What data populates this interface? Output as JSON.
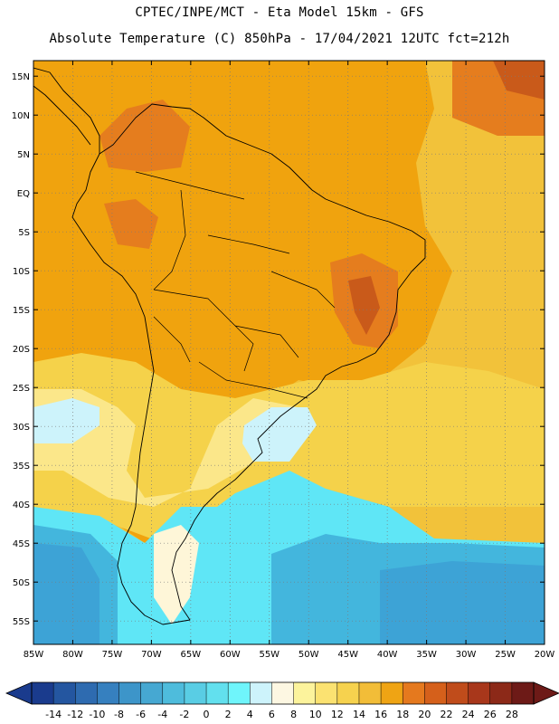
{
  "header": {
    "line1": "CPTEC/INPE/MCT -  Eta Model 15km - GFS",
    "line2": "Absolute Temperature (C) 850hPa - 17/04/2021 12UTC fct=212h"
  },
  "map": {
    "region": "South America",
    "lon_range": [
      -85,
      -20
    ],
    "lat_range": [
      -58,
      17
    ],
    "lat_labels": [
      "15N",
      "10N",
      "5N",
      "EQ",
      "5S",
      "10S",
      "15S",
      "20S",
      "25S",
      "30S",
      "35S",
      "40S",
      "45S",
      "50S",
      "55S"
    ],
    "lat_values": [
      15,
      10,
      5,
      0,
      -5,
      -10,
      -15,
      -20,
      -25,
      -30,
      -35,
      -40,
      -45,
      -50,
      -55
    ],
    "lon_labels": [
      "85W",
      "80W",
      "75W",
      "70W",
      "65W",
      "60W",
      "55W",
      "50W",
      "45W",
      "40W",
      "35W",
      "30W",
      "25W",
      "20W"
    ],
    "lon_values": [
      -85,
      -80,
      -75,
      -70,
      -65,
      -60,
      -55,
      -50,
      -45,
      -40,
      -35,
      -30,
      -25,
      -20
    ],
    "fill_colors": {
      "land_warm": "#f0a30e",
      "hot": "#e57d1e",
      "very_hot": "#c95a1a",
      "ocean_north": "#f2c23a",
      "mild": "#f5d24a",
      "cool_yellow": "#fbe78a",
      "pale": "#fef6d8",
      "very_pale": "#fff9e8",
      "light_cyan": "#cdf3fb",
      "cyan": "#5fe6f6",
      "cyan2": "#4dcfe8",
      "blue1": "#43b6dd",
      "blue2": "#3da3d6"
    }
  },
  "colorbar": {
    "labels": [
      "-14",
      "-12",
      "-10",
      "-8",
      "-6",
      "-4",
      "-2",
      "0",
      "2",
      "4",
      "6",
      "8",
      "10",
      "12",
      "14",
      "16",
      "18",
      "20",
      "22",
      "24",
      "26",
      "28"
    ],
    "colors": [
      "#1a3b8d",
      "#2456a0",
      "#2e6bb0",
      "#3680bf",
      "#3d95c9",
      "#46a8d2",
      "#4ebcdc",
      "#59cde4",
      "#62e0ee",
      "#6ff5fb",
      "#cdf3fb",
      "#fdf7e2",
      "#fcf39c",
      "#fbe271",
      "#f6d24e",
      "#f2bd38",
      "#efa414",
      "#e5791e",
      "#d5601b",
      "#c04c1b",
      "#a8371b",
      "#8c2918",
      "#6d1a17"
    ]
  }
}
